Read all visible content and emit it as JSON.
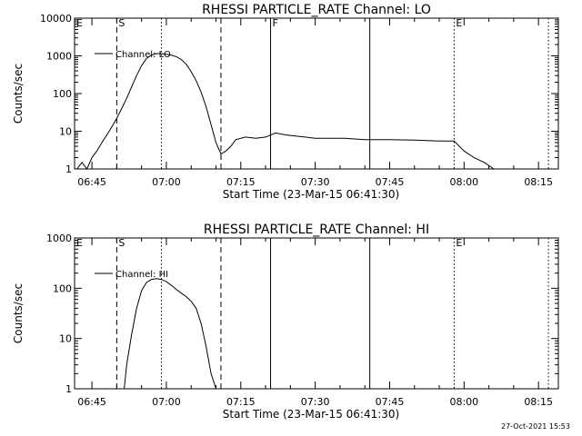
{
  "chart_data": [
    {
      "type": "line",
      "title": "RHESSI PARTICLE_RATE Channel: LO",
      "xlabel": "Start Time (23-Mar-15 06:41:30)",
      "ylabel": "Counts/sec",
      "yscale": "log",
      "ylim": [
        1,
        10000
      ],
      "x_ticks": [
        "06:45",
        "07:00",
        "07:15",
        "07:30",
        "07:45",
        "08:00",
        "08:15"
      ],
      "y_ticks": [
        "1",
        "10",
        "100",
        "1000",
        "10000"
      ],
      "legend": "Channel: LO",
      "markers": [
        {
          "label": "E",
          "time": "06:41:30",
          "style": "dashed"
        },
        {
          "label": "S",
          "time": "06:50:00",
          "style": "dashed"
        },
        {
          "label": "",
          "time": "06:59:00",
          "style": "dotted"
        },
        {
          "label": "",
          "time": "07:11:00",
          "style": "dashed"
        },
        {
          "label": "F",
          "time": "07:21:00",
          "style": "solid"
        },
        {
          "label": "",
          "time": "07:41:00",
          "style": "solid"
        },
        {
          "label": "E",
          "time": "07:58:00",
          "style": "dotted"
        },
        {
          "label": "",
          "time": "08:17:00",
          "style": "dotted"
        }
      ],
      "series": [
        {
          "x": [
            "06:42",
            "06:43",
            "06:44",
            "06:45",
            "06:46",
            "06:47",
            "06:48",
            "06:49",
            "06:50",
            "06:51",
            "06:52",
            "06:53",
            "06:54",
            "06:55",
            "06:56",
            "06:57",
            "06:58",
            "06:59",
            "07:00",
            "07:01",
            "07:02",
            "07:03",
            "07:04",
            "07:05",
            "07:06",
            "07:07",
            "07:08",
            "07:09",
            "07:10",
            "07:11",
            "07:12",
            "07:13",
            "07:14",
            "07:16",
            "07:18",
            "07:20",
            "07:22",
            "07:24",
            "07:26",
            "07:28",
            "07:30",
            "07:33",
            "07:36",
            "07:40",
            "07:45",
            "07:50",
            "07:55",
            "07:58",
            "08:00",
            "08:02",
            "08:04",
            "08:06"
          ],
          "y": [
            1,
            1.5,
            1,
            2,
            3,
            5,
            8,
            13,
            22,
            40,
            75,
            150,
            300,
            550,
            850,
            1050,
            1150,
            1150,
            1100,
            1050,
            950,
            800,
            600,
            380,
            220,
            110,
            45,
            15,
            5,
            2.5,
            3,
            4,
            6,
            7,
            6.5,
            7,
            9,
            8,
            7.5,
            7,
            6.5,
            6.5,
            6.5,
            6,
            6,
            5.8,
            5.5,
            5.5,
            3,
            2,
            1.5,
            1
          ]
        }
      ]
    },
    {
      "type": "line",
      "title": "RHESSI PARTICLE_RATE Channel: HI",
      "xlabel": "Start Time (23-Mar-15 06:41:30)",
      "ylabel": "Counts/sec",
      "yscale": "log",
      "ylim": [
        1,
        1000
      ],
      "x_ticks": [
        "06:45",
        "07:00",
        "07:15",
        "07:30",
        "07:45",
        "08:00",
        "08:15"
      ],
      "y_ticks": [
        "1",
        "10",
        "100",
        "1000"
      ],
      "legend": "Channel: HI",
      "markers": [
        {
          "label": "E",
          "time": "06:41:30",
          "style": "dashed"
        },
        {
          "label": "S",
          "time": "06:50:00",
          "style": "dashed"
        },
        {
          "label": "",
          "time": "06:59:00",
          "style": "dotted"
        },
        {
          "label": "",
          "time": "07:11:00",
          "style": "dashed"
        },
        {
          "label": "",
          "time": "07:21:00",
          "style": "solid"
        },
        {
          "label": "",
          "time": "07:41:00",
          "style": "solid"
        },
        {
          "label": "E",
          "time": "07:58:00",
          "style": "dotted"
        },
        {
          "label": "",
          "time": "08:17:00",
          "style": "dotted"
        }
      ],
      "series": [
        {
          "x": [
            "06:51:30",
            "06:52",
            "06:53",
            "06:54",
            "06:55",
            "06:56",
            "06:57",
            "06:58",
            "06:59",
            "07:00",
            "07:01",
            "07:02",
            "07:03",
            "07:04",
            "07:05",
            "07:06",
            "07:07",
            "07:08",
            "07:09",
            "07:10"
          ],
          "y": [
            1,
            3,
            12,
            40,
            90,
            130,
            150,
            155,
            150,
            135,
            115,
            95,
            80,
            68,
            55,
            40,
            20,
            7,
            2,
            1
          ]
        }
      ]
    }
  ],
  "footer": {
    "timestamp": "27-Oct-2021 15:53"
  }
}
